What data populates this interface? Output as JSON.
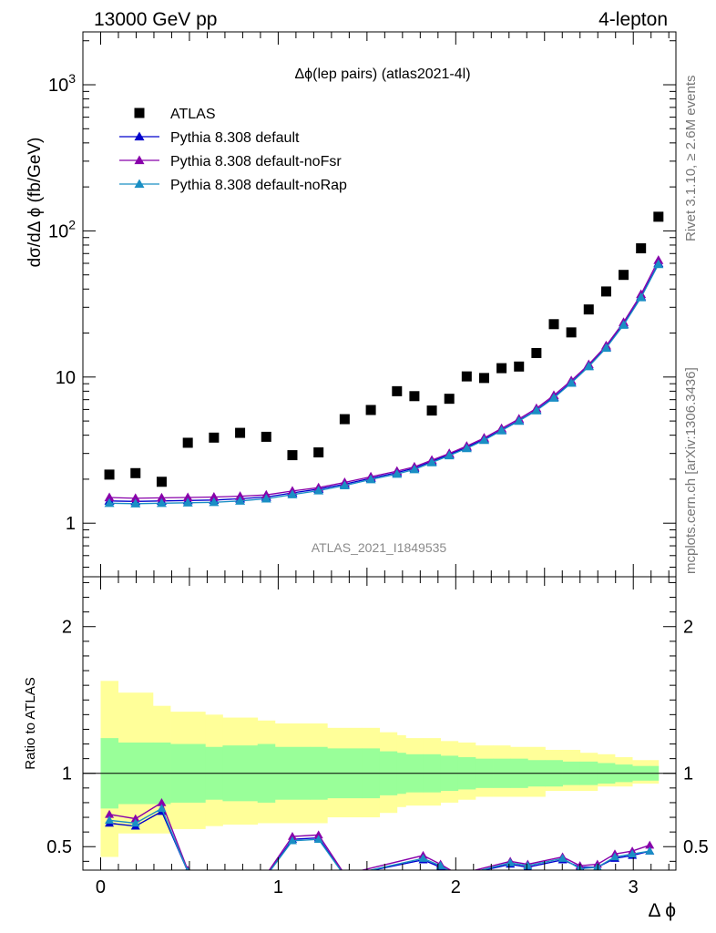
{
  "header": {
    "left_label": "13000 GeV pp",
    "right_label": "4-lepton"
  },
  "side_text": {
    "rivet": "Rivet 3.1.10, ≥ 2.6M events",
    "mcplots": "mcplots.cern.ch [arXiv:1306.3436]"
  },
  "chart_data": [
    {
      "type": "scatter",
      "title": "Δϕ(lep pairs) (atlas2021-4l)",
      "watermark": "ATLAS_2021_I1849535",
      "ylabel": "dσ/dΔ ϕ (fb/GeV)",
      "xlabel": "Δ ϕ",
      "yscale": "log",
      "xlim": [
        -0.1,
        3.24
      ],
      "ylim": [
        0.43,
        2300
      ],
      "y_ticks": [
        {
          "value": 1,
          "label": "1"
        },
        {
          "value": 10,
          "label": "10"
        },
        {
          "value": 100,
          "label": "10^2"
        },
        {
          "value": 1000,
          "label": "10^3"
        }
      ],
      "legend_position": "top-left",
      "x": [
        0.0491,
        0.1963,
        0.3436,
        0.4909,
        0.6381,
        0.7854,
        0.9327,
        1.0799,
        1.2272,
        1.3744,
        1.5217,
        1.669,
        1.7671,
        1.8653,
        1.9635,
        2.0617,
        2.1598,
        2.258,
        2.3562,
        2.4544,
        2.5525,
        2.6507,
        2.7489,
        2.8471,
        2.9452,
        3.0434,
        3.1416
      ],
      "series": [
        {
          "name": "ATLAS",
          "marker": "square",
          "color": "#000000",
          "values": [
            2.15,
            2.2,
            1.92,
            3.55,
            3.85,
            4.15,
            3.9,
            2.92,
            3.05,
            5.15,
            5.95,
            8.0,
            7.4,
            5.9,
            7.1,
            10.1,
            9.85,
            11.5,
            11.8,
            14.6,
            23.0,
            20.2,
            29.0,
            38.5,
            50.0,
            76.0,
            125.0
          ]
        },
        {
          "name": "Pythia 8.308 default",
          "marker": "triangle",
          "color": "#0000cc",
          "values": [
            1.42,
            1.41,
            1.42,
            1.43,
            1.44,
            1.47,
            1.51,
            1.61,
            1.71,
            1.85,
            2.03,
            2.22,
            2.38,
            2.65,
            2.95,
            3.3,
            3.75,
            4.35,
            5.05,
            5.95,
            7.3,
            9.2,
            11.9,
            16.0,
            23.0,
            35.5,
            60.0
          ]
        },
        {
          "name": "Pythia 8.308 default-noFsr",
          "marker": "triangle",
          "color": "#8800aa",
          "values": [
            1.5,
            1.48,
            1.49,
            1.5,
            1.51,
            1.53,
            1.56,
            1.66,
            1.75,
            1.9,
            2.08,
            2.27,
            2.43,
            2.7,
            3.0,
            3.37,
            3.83,
            4.45,
            5.17,
            6.1,
            7.5,
            9.45,
            12.2,
            16.4,
            23.7,
            36.8,
            63.0
          ]
        },
        {
          "name": "Pythia 8.308 default-noRap",
          "marker": "triangle",
          "color": "#1a8fc4",
          "values": [
            1.37,
            1.36,
            1.37,
            1.38,
            1.39,
            1.42,
            1.47,
            1.57,
            1.67,
            1.81,
            1.99,
            2.17,
            2.33,
            2.6,
            2.9,
            3.25,
            3.7,
            4.3,
            5.0,
            5.9,
            7.2,
            9.1,
            11.8,
            15.8,
            22.7,
            35.0,
            59.0
          ]
        }
      ]
    },
    {
      "type": "line",
      "ylabel": "Ratio to ATLAS",
      "xlabel": "Δ ϕ",
      "xlim": [
        -0.1,
        3.24
      ],
      "ylim": [
        0.34,
        2.34
      ],
      "x_ticks": [
        0,
        1,
        2,
        3
      ],
      "y_ticks": [
        0.5,
        1,
        2
      ],
      "reference_line": 1,
      "bands": {
        "bin_edges": [
          0.0,
          0.0982,
          0.2945,
          0.3927,
          0.589,
          0.6872,
          0.8836,
          0.9818,
          1.1781,
          1.2763,
          1.4726,
          1.5708,
          1.669,
          1.7181,
          1.8162,
          1.9144,
          2.0126,
          2.1108,
          2.2089,
          2.3071,
          2.4053,
          2.5035,
          2.6016,
          2.6998,
          2.798,
          2.8962,
          2.9943,
          3.0925,
          3.1416
        ],
        "note": "per-bin relative uncertainties of the ATLAS data",
        "stat_color": "#99ff99",
        "total_color": "#ffff99",
        "stat_lo": [
          0.76,
          0.79,
          0.79,
          0.8,
          0.82,
          0.81,
          0.8,
          0.82,
          0.82,
          0.83,
          0.83,
          0.85,
          0.86,
          0.87,
          0.87,
          0.88,
          0.89,
          0.9,
          0.9,
          0.9,
          0.91,
          0.91,
          0.92,
          0.92,
          0.93,
          0.94,
          0.95,
          0.95
        ],
        "stat_hi": [
          1.24,
          1.21,
          1.21,
          1.2,
          1.18,
          1.19,
          1.2,
          1.18,
          1.18,
          1.17,
          1.17,
          1.15,
          1.14,
          1.13,
          1.13,
          1.12,
          1.11,
          1.1,
          1.1,
          1.1,
          1.09,
          1.09,
          1.08,
          1.08,
          1.07,
          1.06,
          1.05,
          1.05
        ],
        "total_lo": [
          0.43,
          0.59,
          0.59,
          0.62,
          0.64,
          0.65,
          0.66,
          0.66,
          0.66,
          0.7,
          0.7,
          0.73,
          0.77,
          0.78,
          0.78,
          0.8,
          0.82,
          0.84,
          0.84,
          0.84,
          0.84,
          0.88,
          0.88,
          0.88,
          0.91,
          0.91,
          0.93,
          0.93
        ],
        "total_hi": [
          1.63,
          1.55,
          1.46,
          1.42,
          1.4,
          1.38,
          1.36,
          1.34,
          1.34,
          1.31,
          1.31,
          1.28,
          1.26,
          1.24,
          1.24,
          1.22,
          1.21,
          1.19,
          1.19,
          1.18,
          1.18,
          1.16,
          1.16,
          1.14,
          1.13,
          1.11,
          1.09,
          1.09
        ]
      },
      "series": [
        {
          "name": "Pythia 8.308 default",
          "color": "#0000cc",
          "x": [
            0.0491,
            0.1963,
            0.3436,
            0.4909,
            0.6381,
            0.7854,
            0.9327,
            1.0799,
            1.2272,
            1.3744,
            1.8162,
            1.9144,
            2.0126,
            2.3071,
            2.4053,
            2.6016,
            2.6998,
            2.798,
            2.8962,
            2.9943,
            3.0925
          ],
          "values": [
            0.66,
            0.64,
            0.74,
            0.33,
            0.28,
            0.25,
            0.3,
            0.55,
            0.56,
            0.3,
            0.41,
            0.36,
            0.3,
            0.38,
            0.36,
            0.41,
            0.36,
            0.36,
            0.42,
            0.44,
            0.47
          ]
        },
        {
          "name": "Pythia 8.308 default-noFsr",
          "color": "#8800aa",
          "x": [
            0.0491,
            0.1963,
            0.3436,
            0.4909,
            0.6381,
            0.7854,
            0.9327,
            1.0799,
            1.2272,
            1.3744,
            1.8162,
            1.9144,
            2.0126,
            2.3071,
            2.4053,
            2.6016,
            2.6998,
            2.798,
            2.8962,
            2.9943,
            3.0925
          ],
          "values": [
            0.72,
            0.69,
            0.8,
            0.34,
            0.29,
            0.26,
            0.31,
            0.57,
            0.58,
            0.31,
            0.44,
            0.38,
            0.31,
            0.4,
            0.38,
            0.43,
            0.37,
            0.38,
            0.45,
            0.47,
            0.51
          ]
        },
        {
          "name": "Pythia 8.308 default-noRap",
          "color": "#1a8fc4",
          "x": [
            0.0491,
            0.1963,
            0.3436,
            0.4909,
            0.6381,
            0.7854,
            0.9327,
            1.0799,
            1.2272,
            1.3744,
            1.8162,
            1.9144,
            2.0126,
            2.3071,
            2.4053,
            2.6016,
            2.6998,
            2.798,
            2.8962,
            2.9943,
            3.0925
          ],
          "values": [
            0.68,
            0.66,
            0.76,
            0.33,
            0.28,
            0.25,
            0.3,
            0.54,
            0.55,
            0.3,
            0.42,
            0.37,
            0.3,
            0.39,
            0.37,
            0.42,
            0.35,
            0.36,
            0.43,
            0.45,
            0.47
          ]
        }
      ]
    }
  ]
}
